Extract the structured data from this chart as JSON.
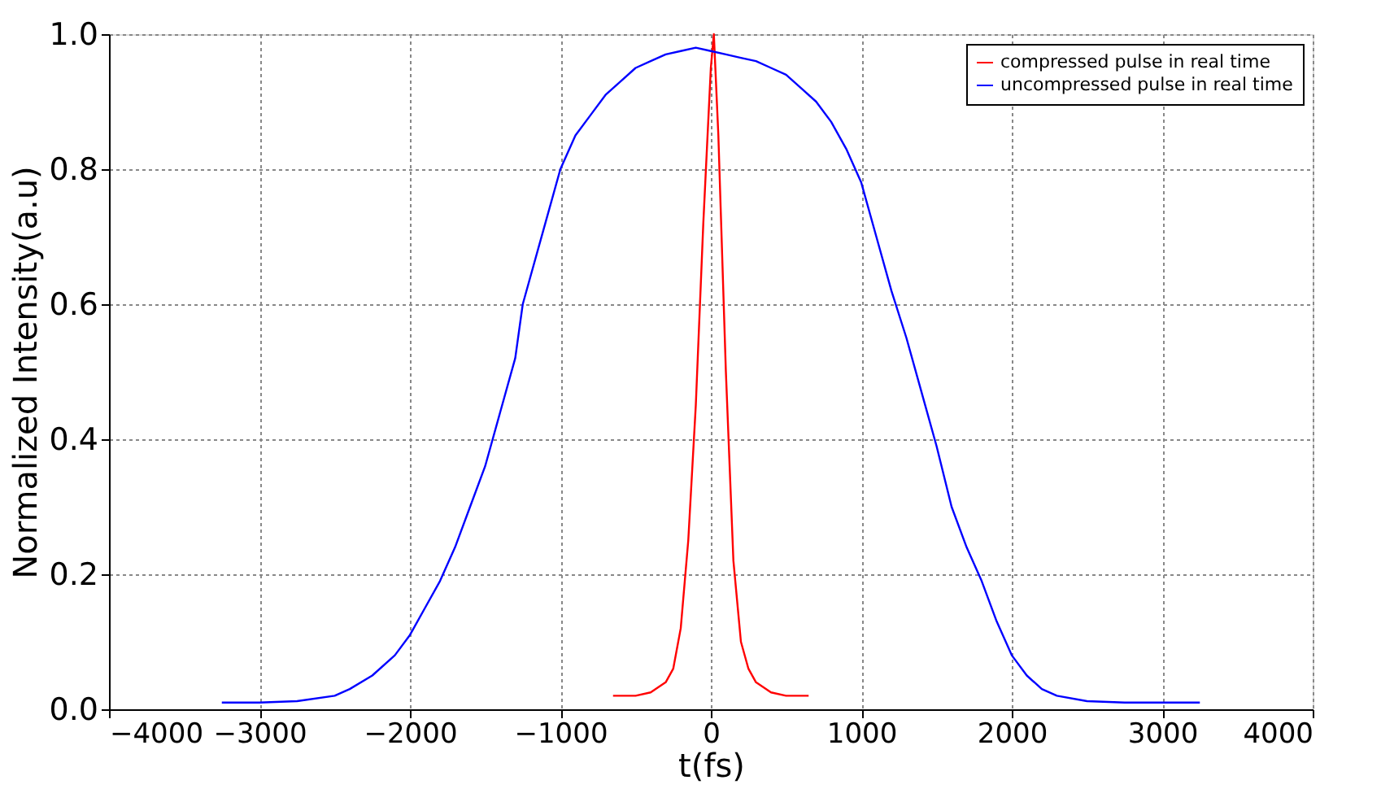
{
  "chart_data": {
    "type": "line",
    "xlabel": "t(fs)",
    "ylabel": "Normalized Intensity(a.u)",
    "xlim": [
      -4000,
      4000
    ],
    "xticks": [
      -4000,
      -3000,
      -2000,
      -1000,
      0,
      1000,
      2000,
      3000,
      4000
    ],
    "ylim": [
      0,
      1
    ],
    "yticks": [
      {
        "value": 0,
        "label": "0.0"
      },
      0.2,
      0.4,
      0.6,
      0.8,
      {
        "value": 1,
        "label": "1.0"
      }
    ],
    "grid": true,
    "legend": "top right",
    "marker": "none",
    "line_style": "solid",
    "series": [
      {
        "name": "compressed pulse in real time",
        "color": "#ff0000",
        "x": [
          -650,
          -500,
          -400,
          -300,
          -250,
          -200,
          -150,
          -100,
          -50,
          0,
          20,
          50,
          100,
          150,
          200,
          250,
          300,
          400,
          500,
          650
        ],
        "values": [
          0.02,
          0.02,
          0.025,
          0.04,
          0.06,
          0.12,
          0.25,
          0.45,
          0.72,
          0.95,
          1.0,
          0.85,
          0.5,
          0.22,
          0.1,
          0.06,
          0.04,
          0.025,
          0.02,
          0.02
        ]
      },
      {
        "name": "uncompressed pulse in real time",
        "color": "#0000ff",
        "x": [
          -3250,
          -3000,
          -2750,
          -2500,
          -2400,
          -2250,
          -2100,
          -2000,
          -1900,
          -1800,
          -1700,
          -1600,
          -1500,
          -1400,
          -1300,
          -1250,
          -1200,
          -1100,
          -1000,
          -900,
          -800,
          -700,
          -600,
          -500,
          -400,
          -300,
          -200,
          -100,
          0,
          100,
          200,
          300,
          400,
          500,
          600,
          700,
          800,
          900,
          1000,
          1100,
          1200,
          1300,
          1400,
          1500,
          1600,
          1700,
          1800,
          1900,
          2000,
          2100,
          2200,
          2300,
          2500,
          2750,
          3000,
          3250
        ],
        "values": [
          0.01,
          0.01,
          0.012,
          0.02,
          0.03,
          0.05,
          0.08,
          0.11,
          0.15,
          0.19,
          0.24,
          0.3,
          0.36,
          0.44,
          0.52,
          0.6,
          0.64,
          0.72,
          0.8,
          0.85,
          0.88,
          0.91,
          0.93,
          0.95,
          0.96,
          0.97,
          0.975,
          0.98,
          0.975,
          0.97,
          0.965,
          0.96,
          0.95,
          0.94,
          0.92,
          0.9,
          0.87,
          0.83,
          0.78,
          0.7,
          0.62,
          0.55,
          0.47,
          0.39,
          0.3,
          0.24,
          0.19,
          0.13,
          0.08,
          0.05,
          0.03,
          0.02,
          0.012,
          0.01,
          0.01,
          0.01
        ]
      }
    ]
  }
}
